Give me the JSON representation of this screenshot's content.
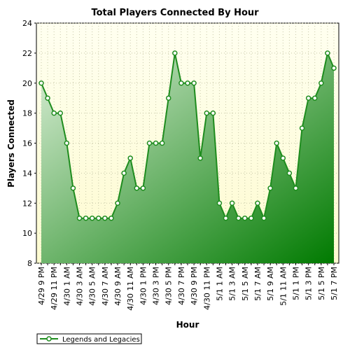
{
  "chart_data": {
    "type": "area",
    "title": "Total Players Connected By Hour",
    "xlabel": "Hour",
    "ylabel": "Players Connected",
    "ylim": [
      8,
      24
    ],
    "yticks": [
      8,
      10,
      12,
      14,
      16,
      18,
      20,
      22,
      24
    ],
    "grid": true,
    "legend_placement": "bottom-left",
    "categories": [
      "4/29 9 PM",
      "4/29 10 PM",
      "4/29 11 PM",
      "4/30 12 AM",
      "4/30 1 AM",
      "4/30 2 AM",
      "4/30 3 AM",
      "4/30 4 AM",
      "4/30 5 AM",
      "4/30 6 AM",
      "4/30 7 AM",
      "4/30 8 AM",
      "4/30 9 AM",
      "4/30 10 AM",
      "4/30 11 AM",
      "4/30 12 PM",
      "4/30 1 PM",
      "4/30 2 PM",
      "4/30 3 PM",
      "4/30 4 PM",
      "4/30 5 PM",
      "4/30 6 PM",
      "4/30 7 PM",
      "4/30 8 PM",
      "4/30 9 PM",
      "4/30 10 PM",
      "4/30 11 PM",
      "5/1 12 AM",
      "5/1 1 AM",
      "5/1 2 AM",
      "5/1 3 AM",
      "5/1 4 AM",
      "5/1 5 AM",
      "5/1 6 AM",
      "5/1 7 AM",
      "5/1 8 AM",
      "5/1 9 AM",
      "5/1 10 AM",
      "5/1 11 AM",
      "5/1 12 PM",
      "5/1 1 PM",
      "5/1 2 PM",
      "5/1 3 PM",
      "5/1 4 PM",
      "5/1 5 PM",
      "5/1 6 PM",
      "5/1 7 PM"
    ],
    "tick_labels": [
      "4/29 9 PM",
      "4/29 11 PM",
      "4/30 1 AM",
      "4/30 3 AM",
      "4/30 5 AM",
      "4/30 7 AM",
      "4/30 9 AM",
      "4/30 11 AM",
      "4/30 1 PM",
      "4/30 3 PM",
      "4/30 5 PM",
      "4/30 7 PM",
      "4/30 9 PM",
      "4/30 11 PM",
      "5/1 1 AM",
      "5/1 3 AM",
      "5/1 5 AM",
      "5/1 7 AM",
      "5/1 9 AM",
      "5/1 11 AM",
      "5/1 1 PM",
      "5/1 3 PM",
      "5/1 5 PM",
      "5/1 7 PM"
    ],
    "series": [
      {
        "name": "Legends and Legacies",
        "values": [
          20,
          19,
          18,
          18,
          16,
          13,
          11,
          11,
          11,
          11,
          11,
          11,
          12,
          14,
          15,
          13,
          13,
          16,
          16,
          16,
          19,
          22,
          20,
          20,
          20,
          15,
          18,
          18,
          12,
          11,
          12,
          11,
          11,
          11,
          12,
          11,
          13,
          16,
          15,
          14,
          13,
          17,
          19,
          19,
          20,
          22,
          21
        ]
      }
    ]
  },
  "colors": {
    "plot_background_top": "#fffff0",
    "plot_background_bottom": "#fdfbd0",
    "area_light": "#dcefd8",
    "area_dark": "#007a00",
    "line": "#1e8c1e",
    "marker_fill": "#ffffff",
    "grid": "#c8c8a8"
  }
}
